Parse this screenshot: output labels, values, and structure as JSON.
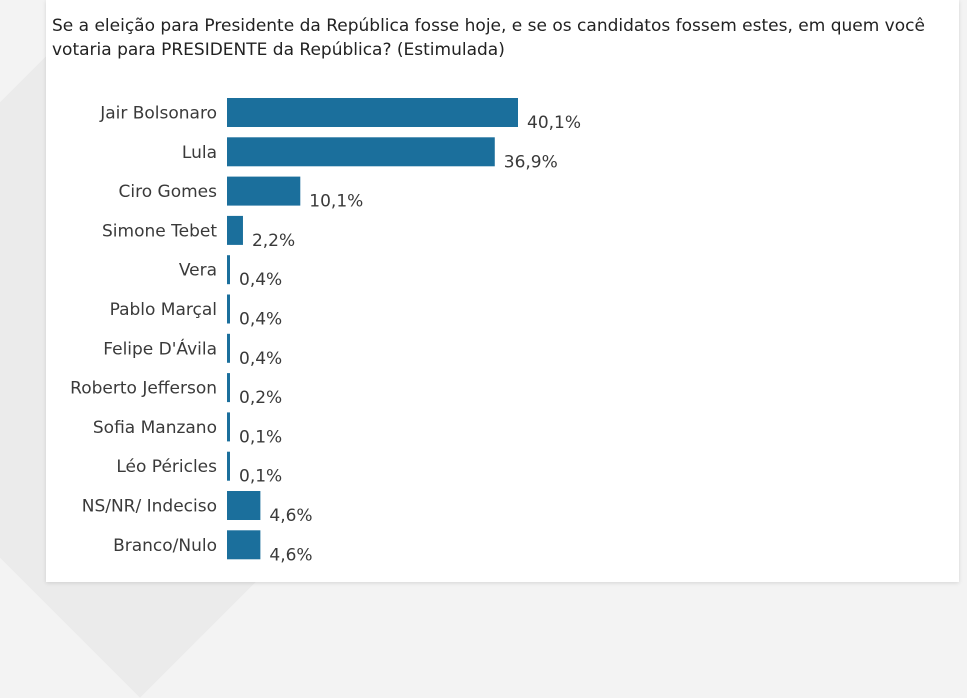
{
  "chart_data": {
    "type": "bar",
    "orientation": "horizontal",
    "title": "Se a eleição para Presidente da República fosse hoje, e se os candidatos fossem estes, em quem você votaria para PRESIDENTE da República? (Estimulada)",
    "categories": [
      "Jair Bolsonaro",
      "Lula",
      "Ciro Gomes",
      "Simone Tebet",
      "Vera",
      "Pablo Marçal",
      "Felipe D'Ávila",
      "Roberto Jefferson",
      "Sofia Manzano",
      "Léo Péricles",
      "NS/NR/ Indeciso",
      "Branco/Nulo"
    ],
    "values": [
      40.1,
      36.9,
      10.1,
      2.2,
      0.4,
      0.4,
      0.4,
      0.2,
      0.1,
      0.1,
      4.6,
      4.6
    ],
    "value_labels": [
      "40,1%",
      "36,9%",
      "10,1%",
      "2,2%",
      "0,4%",
      "0,4%",
      "0,4%",
      "0,2%",
      "0,1%",
      "0,1%",
      "4,6%",
      "4,6%"
    ],
    "xlabel": "",
    "ylabel": "",
    "color": "#1b6f9c",
    "grid": false,
    "legend": "none"
  }
}
